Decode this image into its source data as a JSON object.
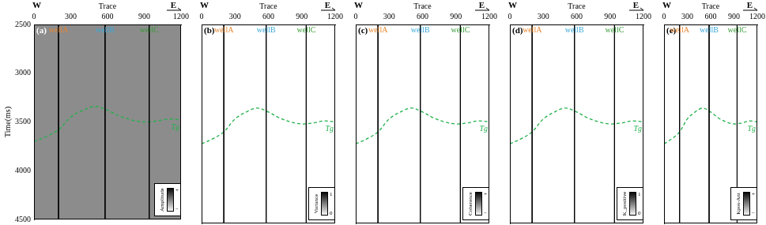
{
  "chart_data": [
    {
      "type": "line",
      "title": "(a)",
      "x_label": "Trace",
      "y_label": "Time(ms)",
      "annotations": [
        "W",
        "E"
      ],
      "xlim": [
        0,
        1200
      ],
      "xticks": [
        0,
        300,
        600,
        900,
        1200
      ],
      "ylim": [
        2500,
        4500
      ],
      "yticks": [
        2500,
        3000,
        3500,
        4000,
        4500
      ],
      "grid": false,
      "x": [
        0,
        100,
        200,
        300,
        400,
        500,
        600,
        700,
        800,
        900,
        1000,
        1100,
        1200
      ],
      "series": [
        {
          "name": "Tg",
          "color": "#22b14c",
          "line_style": "dashed",
          "values": [
            3700,
            3650,
            3580,
            3450,
            3380,
            3340,
            3380,
            3440,
            3480,
            3500,
            3490,
            3470,
            3480
          ]
        }
      ],
      "wells": [
        {
          "name": "wellA",
          "color": "#e8842c",
          "x": 200
        },
        {
          "name": "wellB",
          "color": "#3aa7d8",
          "x": 580
        },
        {
          "name": "wellC",
          "color": "#3a9b3a",
          "x": 940
        }
      ],
      "colorbar": {
        "title": "Amplitude",
        "ticks": [
          "+",
          "−"
        ]
      }
    },
    {
      "type": "line",
      "title": "(b)",
      "x_label": "Trace",
      "annotations": [
        "W",
        "E"
      ],
      "tick_labels": "x",
      "xlim": [
        0,
        1200
      ],
      "xticks": [
        0,
        300,
        600,
        900,
        1200
      ],
      "ylim": [
        2500,
        4500
      ],
      "yticks": [
        2500,
        3000,
        3500,
        4000,
        4500
      ],
      "grid": false,
      "x": [
        0,
        100,
        200,
        300,
        400,
        500,
        600,
        700,
        800,
        900,
        1000,
        1100,
        1200
      ],
      "series": [
        {
          "name": "Tg",
          "color": "#22b14c",
          "line_style": "dashed",
          "values": [
            3700,
            3650,
            3580,
            3450,
            3380,
            3340,
            3380,
            3440,
            3480,
            3500,
            3490,
            3470,
            3480
          ]
        }
      ],
      "wells": [
        {
          "name": "wellA",
          "color": "#e8842c",
          "x": 200
        },
        {
          "name": "wellB",
          "color": "#3aa7d8",
          "x": 580
        },
        {
          "name": "wellC",
          "color": "#3a9b3a",
          "x": 940
        }
      ],
      "colorbar": {
        "title": "Variance",
        "ticks": [
          1,
          0
        ]
      }
    },
    {
      "type": "line",
      "title": "(c)",
      "x_label": "Trace",
      "annotations": [
        "W",
        "E"
      ],
      "tick_labels": "x",
      "xlim": [
        0,
        1200
      ],
      "xticks": [
        0,
        300,
        600,
        900,
        1200
      ],
      "ylim": [
        2500,
        4500
      ],
      "yticks": [
        2500,
        3000,
        3500,
        4000,
        4500
      ],
      "grid": false,
      "x": [
        0,
        100,
        200,
        300,
        400,
        500,
        600,
        700,
        800,
        900,
        1000,
        1100,
        1200
      ],
      "series": [
        {
          "name": "Tg",
          "color": "#22b14c",
          "line_style": "dashed",
          "values": [
            3700,
            3650,
            3580,
            3450,
            3380,
            3340,
            3380,
            3440,
            3480,
            3500,
            3490,
            3470,
            3480
          ]
        }
      ],
      "wells": [
        {
          "name": "wellA",
          "color": "#e8842c",
          "x": 200
        },
        {
          "name": "wellB",
          "color": "#3aa7d8",
          "x": 580
        },
        {
          "name": "wellC",
          "color": "#3a9b3a",
          "x": 940
        }
      ],
      "colorbar": {
        "title": "Coherence",
        "ticks": [
          "+",
          "−"
        ]
      }
    },
    {
      "type": "line",
      "title": "(d)",
      "x_label": "Trace",
      "annotations": [
        "W",
        "E"
      ],
      "tick_labels": "x",
      "xlim": [
        0,
        1200
      ],
      "xticks": [
        0,
        300,
        600,
        900,
        1200
      ],
      "ylim": [
        2500,
        4500
      ],
      "yticks": [
        2500,
        3000,
        3500,
        4000,
        4500
      ],
      "grid": false,
      "x": [
        0,
        100,
        200,
        300,
        400,
        500,
        600,
        700,
        800,
        900,
        1000,
        1100,
        1200
      ],
      "series": [
        {
          "name": "Tg",
          "color": "#22b14c",
          "line_style": "dashed",
          "values": [
            3700,
            3650,
            3580,
            3450,
            3380,
            3340,
            3380,
            3440,
            3480,
            3500,
            3490,
            3470,
            3480
          ]
        }
      ],
      "wells": [
        {
          "name": "wellA",
          "color": "#e8842c",
          "x": 200
        },
        {
          "name": "wellB",
          "color": "#3aa7d8",
          "x": 580
        },
        {
          "name": "wellC",
          "color": "#3a9b3a",
          "x": 940
        }
      ],
      "colorbar": {
        "title": "K_positive",
        "ticks": [
          1,
          0
        ]
      }
    },
    {
      "type": "line",
      "title": "(e)",
      "x_label": "Trace",
      "annotations": [
        "W",
        "E"
      ],
      "tick_labels": "x",
      "xlim": [
        0,
        1200
      ],
      "xticks": [
        0,
        300,
        600,
        900,
        1200
      ],
      "ylim": [
        2500,
        4500
      ],
      "yticks": [
        2500,
        3000,
        3500,
        4000,
        4500
      ],
      "grid": false,
      "x": [
        0,
        100,
        200,
        300,
        400,
        500,
        600,
        700,
        800,
        900,
        1000,
        1100,
        1200
      ],
      "series": [
        {
          "name": "Tg",
          "color": "#22b14c",
          "line_style": "dashed",
          "values": [
            3700,
            3650,
            3580,
            3450,
            3380,
            3340,
            3380,
            3440,
            3480,
            3500,
            3490,
            3470,
            3480
          ]
        }
      ],
      "wells": [
        {
          "name": "wellA",
          "color": "#e8842c",
          "x": 200
        },
        {
          "name": "wellB",
          "color": "#3aa7d8",
          "x": 580
        },
        {
          "name": "wellC",
          "color": "#3a9b3a",
          "x": 940
        }
      ],
      "colorbar": {
        "title": "Kpos-Ant",
        "ticks": [
          "+",
          "−"
        ]
      }
    }
  ]
}
